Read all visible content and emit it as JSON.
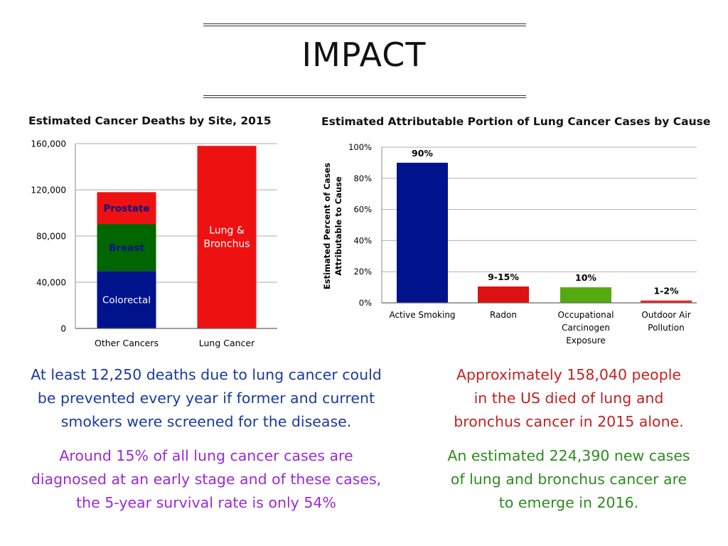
{
  "page": {
    "title": "IMPACT"
  },
  "colors": {
    "blue_text": "#1a3a9e",
    "purple_text": "#9a2bd6",
    "red_text": "#c42222",
    "green_text": "#2e8b1f",
    "colorectal": "#00128c",
    "breast": "#006600",
    "prostate": "#ee1111",
    "lung": "#ee1111",
    "smoking": "#00128c",
    "radon": "#dd1111",
    "occupational": "#55aa11",
    "outdoor": "#ee2222"
  },
  "chart_data": [
    {
      "type": "bar",
      "stacked": true,
      "title": "Estimated Cancer Deaths by Site, 2015",
      "categories": [
        "Other Cancers",
        "Lung Cancer"
      ],
      "series": [
        {
          "name": "Colorectal",
          "values": [
            49700,
            0
          ]
        },
        {
          "name": "Breast",
          "values": [
            40730,
            0
          ]
        },
        {
          "name": "Prostate",
          "values": [
            27540,
            0
          ]
        },
        {
          "name": "Lung & Bronchus",
          "values": [
            0,
            158040
          ]
        }
      ],
      "ylim": [
        0,
        160000
      ],
      "yticks": [
        0,
        40000,
        80000,
        120000,
        160000
      ],
      "ytick_labels": [
        "0",
        "40,000",
        "80,000",
        "120,000",
        "160,000"
      ],
      "xlabel": "",
      "ylabel": "",
      "grid": true,
      "legend": "none"
    },
    {
      "type": "bar",
      "title": "Estimated Attributable Portion of Lung Cancer Cases by Cause",
      "categories": [
        "Active Smoking",
        "Radon",
        "Occupational Carcinogen Exposure",
        "Outdoor Air Pollution"
      ],
      "category_lines": [
        [
          "Active Smoking"
        ],
        [
          "Radon"
        ],
        [
          "Occupational",
          "Carcinogen",
          "Exposure"
        ],
        [
          "Outdoor Air",
          "Pollution"
        ]
      ],
      "values": [
        90,
        10.5,
        10,
        1.5
      ],
      "data_labels": [
        "90%",
        "9-15%",
        "10%",
        "1-2%"
      ],
      "ylim": [
        0,
        100
      ],
      "yticks": [
        0,
        20,
        40,
        60,
        80,
        100
      ],
      "ytick_labels": [
        "0%",
        "20%",
        "40%",
        "60%",
        "80%",
        "100%"
      ],
      "xlabel": "",
      "ylabel_lines": [
        "Estimated Percent of Cases",
        "Attributable to Cause"
      ],
      "grid": true,
      "legend": "none"
    }
  ],
  "facts": {
    "left_1": [
      "At least 12,250 deaths due to lung cancer could",
      "be prevented every year if former and current",
      "smokers were screened for the disease."
    ],
    "left_2": [
      "Around 15% of all lung cancer cases are",
      "diagnosed at an early stage and of these cases,",
      "the 5-year survival rate is only 54%"
    ],
    "right_1": [
      "Approximately 158,040 people",
      "in the US died of lung and",
      "bronchus cancer in 2015 alone."
    ],
    "right_2": [
      "An estimated 224,390 new cases",
      "of lung and bronchus cancer are",
      "to emerge in 2016."
    ]
  }
}
